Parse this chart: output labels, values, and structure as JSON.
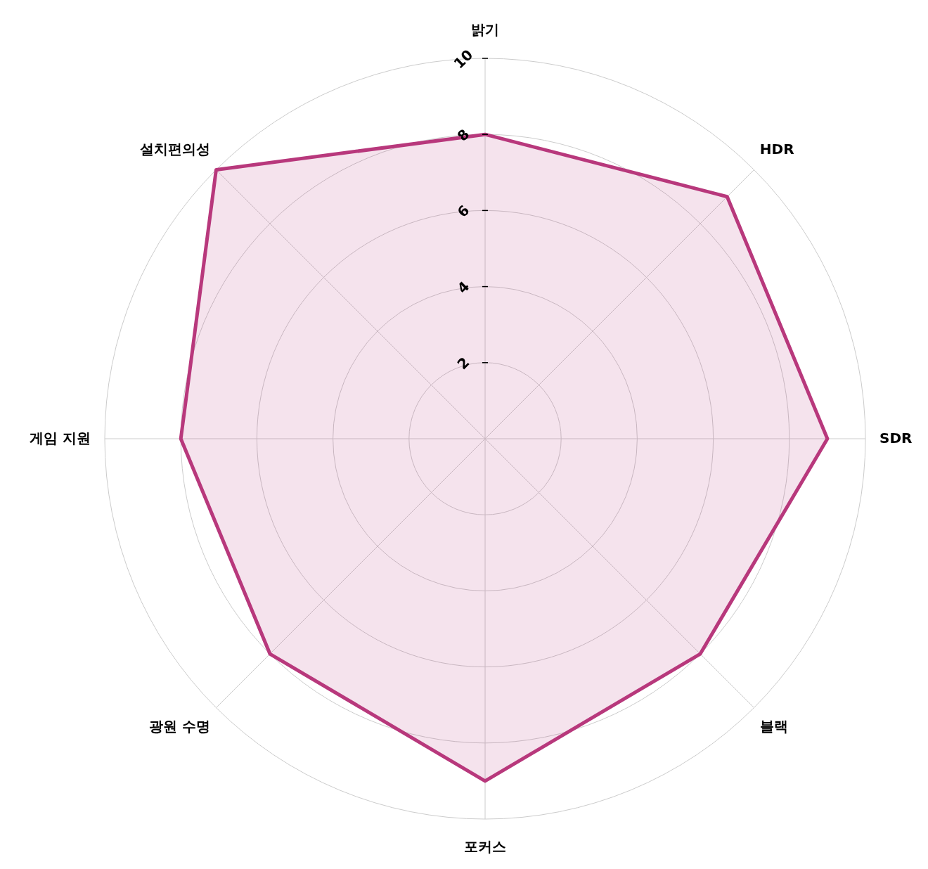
{
  "chart_data": {
    "type": "radar",
    "categories": [
      "밝기",
      "HDR",
      "SDR",
      "블랙",
      "포커스",
      "광원 수명",
      "게임 지원",
      "설치편의성"
    ],
    "series": [
      {
        "color": "#b8387c",
        "values": [
          8,
          9,
          9,
          8,
          9,
          8,
          8,
          10
        ]
      }
    ],
    "ylim": [
      0,
      10
    ],
    "yticks": [
      2,
      4,
      6,
      8,
      10
    ],
    "grid": true
  }
}
